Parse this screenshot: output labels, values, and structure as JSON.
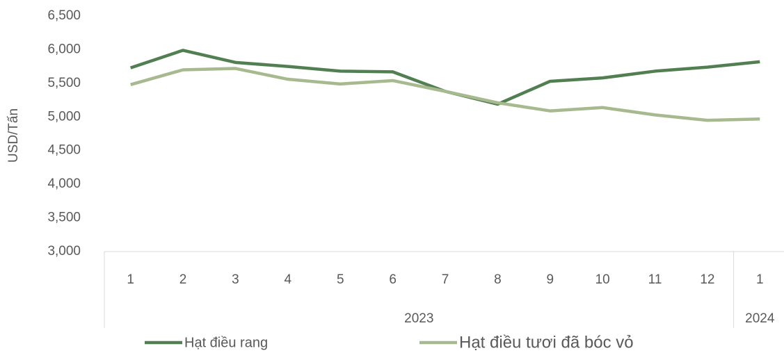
{
  "chart_data": {
    "type": "line",
    "y_label": "USD/Tấn",
    "categories": [
      "1",
      "2",
      "3",
      "4",
      "5",
      "6",
      "7",
      "8",
      "9",
      "10",
      "11",
      "12",
      "1"
    ],
    "category_groups": [
      {
        "label": "2023",
        "count": 12
      },
      {
        "label": "2024",
        "count": 1
      }
    ],
    "series": [
      {
        "name": "Hạt điều rang",
        "color": "#527f52",
        "values": [
          5730,
          5990,
          5810,
          5750,
          5680,
          5670,
          5380,
          5190,
          5530,
          5580,
          5680,
          5740,
          5820
        ]
      },
      {
        "name": "Hạt điều tươi đã bóc vỏ",
        "color": "#a7b98e",
        "values": [
          5480,
          5700,
          5720,
          5560,
          5490,
          5540,
          5380,
          5210,
          5090,
          5140,
          5030,
          4950,
          4970
        ]
      }
    ],
    "ylim": [
      3000,
      6500
    ],
    "yticks": [
      {
        "value": 3000,
        "label": "3,000"
      },
      {
        "value": 3500,
        "label": "3,500"
      },
      {
        "value": 4000,
        "label": "4,000"
      },
      {
        "value": 4500,
        "label": "4,500"
      },
      {
        "value": 5000,
        "label": "5,000"
      },
      {
        "value": 5500,
        "label": "5,500"
      },
      {
        "value": 6000,
        "label": "6,000"
      },
      {
        "value": 6500,
        "label": "6,500"
      }
    ],
    "grid": false,
    "legend": "bottom"
  }
}
